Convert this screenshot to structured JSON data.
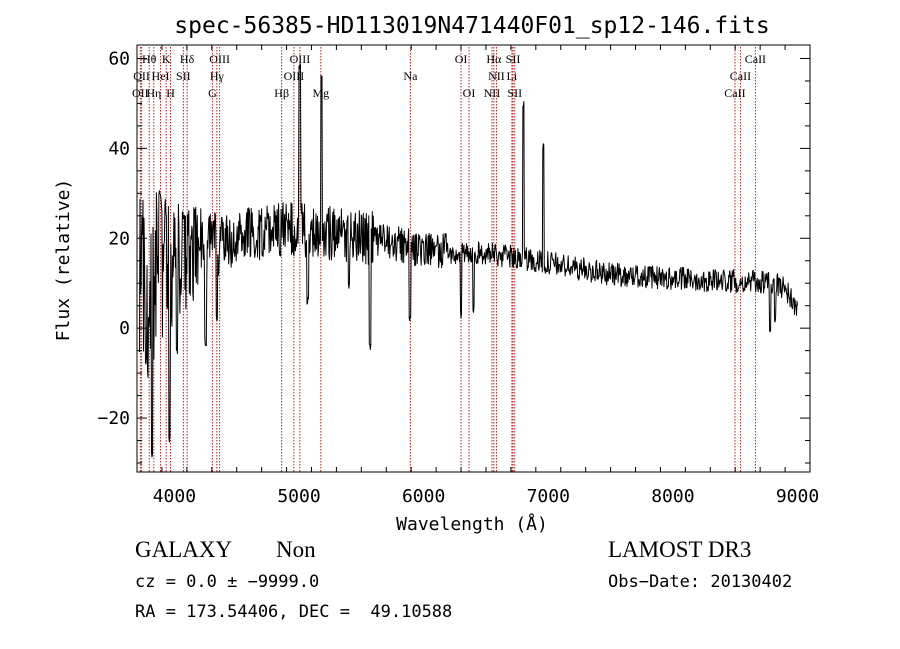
{
  "chart_data": {
    "type": "line",
    "title": "spec-56385-HD113019N471440F01_sp12-146.fits",
    "xlabel": "Wavelength (Å)",
    "ylabel": "Flux (relative)",
    "xlim": [
      3700,
      9100
    ],
    "ylim": [
      -32,
      63
    ],
    "x_ticks": [
      4000,
      5000,
      6000,
      7000,
      8000,
      9000
    ],
    "y_ticks": [
      -20,
      0,
      20,
      40,
      60
    ],
    "x_tick_labels": [
      "4000",
      "5000",
      "6000",
      "7000",
      "8000",
      "9000"
    ],
    "y_tick_labels": [
      "−20",
      "0",
      "20",
      "40",
      "60"
    ],
    "line_color": "#000000",
    "marker_color": "#b22222",
    "continuum": [
      [
        3700,
        6
      ],
      [
        3850,
        12
      ],
      [
        4000,
        14
      ],
      [
        4200,
        17
      ],
      [
        4500,
        20
      ],
      [
        4800,
        22
      ],
      [
        5000,
        22
      ],
      [
        5300,
        21
      ],
      [
        5600,
        20
      ],
      [
        5900,
        18
      ],
      [
        6200,
        17
      ],
      [
        6500,
        16.5
      ],
      [
        6800,
        15.5
      ],
      [
        7000,
        14.5
      ],
      [
        7500,
        12
      ],
      [
        8000,
        11
      ],
      [
        8500,
        10.5
      ],
      [
        8800,
        10
      ],
      [
        8900,
        9
      ],
      [
        9000,
        4
      ]
    ],
    "features": [
      {
        "x": 3820,
        "y": -28
      },
      {
        "x": 3880,
        "y": 30
      },
      {
        "x": 3960,
        "y": -25
      },
      {
        "x": 4020,
        "y": -5
      },
      {
        "x": 4070,
        "y": 25
      },
      {
        "x": 4250,
        "y": -3
      },
      {
        "x": 4340,
        "y": 2
      },
      {
        "x": 4600,
        "y": 26
      },
      {
        "x": 5007,
        "y": 58
      },
      {
        "x": 5070,
        "y": 6
      },
      {
        "x": 5180,
        "y": 56
      },
      {
        "x": 5400,
        "y": 9
      },
      {
        "x": 5570,
        "y": -4
      },
      {
        "x": 5890,
        "y": 2
      },
      {
        "x": 6300,
        "y": 3
      },
      {
        "x": 6400,
        "y": 4
      },
      {
        "x": 6800,
        "y": 50
      },
      {
        "x": 6960,
        "y": 41
      },
      {
        "x": 8780,
        "y": 0
      },
      {
        "x": 8820,
        "y": 2
      }
    ],
    "lines": [
      {
        "label": "OII",
        "x": 3727,
        "row": 2
      },
      {
        "label": "OII",
        "x": 3737,
        "row": 1
      },
      {
        "label": "Hθ",
        "x": 3798,
        "row": 0
      },
      {
        "label": "Hη",
        "x": 3835,
        "row": 2
      },
      {
        "label": "HeI",
        "x": 3889,
        "row": 1
      },
      {
        "label": "K",
        "x": 3934,
        "row": 0
      },
      {
        "label": "H",
        "x": 3969,
        "row": 2
      },
      {
        "label": "Hδ",
        "x": 4102,
        "row": 0
      },
      {
        "label": "SII",
        "x": 4072,
        "row": 1
      },
      {
        "label": "OIII",
        "x": 4363,
        "row": 0
      },
      {
        "label": "Hγ",
        "x": 4341,
        "row": 1
      },
      {
        "label": "G",
        "x": 4305,
        "row": 2
      },
      {
        "label": "OIII",
        "x": 5007,
        "row": 0
      },
      {
        "label": "OIII",
        "x": 4959,
        "row": 1
      },
      {
        "label": "Hβ",
        "x": 4861,
        "row": 2
      },
      {
        "label": "Mg",
        "x": 5175,
        "row": 2
      },
      {
        "label": "Na",
        "x": 5894,
        "row": 1
      },
      {
        "label": "OI",
        "x": 6300,
        "row": 0
      },
      {
        "label": "OI",
        "x": 6364,
        "row": 2
      },
      {
        "label": "Hα",
        "x": 6563,
        "row": 0
      },
      {
        "label": "SII",
        "x": 6717,
        "row": 0
      },
      {
        "label": "NII",
        "x": 6584,
        "row": 1
      },
      {
        "label": "Li",
        "x": 6708,
        "row": 1
      },
      {
        "label": "NII",
        "x": 6548,
        "row": 2
      },
      {
        "label": "SII",
        "x": 6731,
        "row": 2
      },
      {
        "label": "CaII",
        "x": 8662,
        "row": 0
      },
      {
        "label": "CaII",
        "x": 8542,
        "row": 1
      },
      {
        "label": "CaII",
        "x": 8498,
        "row": 2
      }
    ]
  },
  "info": {
    "class_label": "GALAXY",
    "subclass_label": "Non",
    "survey_label": "LAMOST DR3",
    "cz_text": "cz = 0.0 ± −9999.0",
    "obs_date_text": "Obs−Date: 20130402",
    "radec_text": "RA = 173.54406, DEC =  49.10588"
  }
}
